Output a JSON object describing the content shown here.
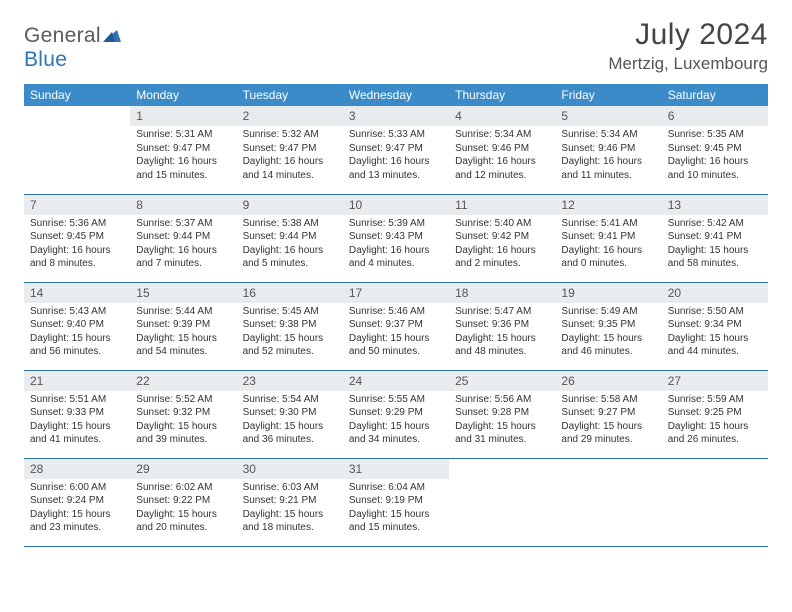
{
  "brand": {
    "name_part1": "General",
    "name_part2": "Blue"
  },
  "title": "July 2024",
  "location": "Mertzig, Luxembourg",
  "colors": {
    "header_bg": "#3b8bc8",
    "header_text": "#ffffff",
    "daynum_bg": "#e9ecef",
    "week_divider": "#2e6ea5",
    "brand_gray": "#5a5a5a",
    "brand_blue": "#2e75b6",
    "body_text": "#333333"
  },
  "typography": {
    "title_fontsize": 30,
    "location_fontsize": 17,
    "dow_fontsize": 12,
    "daynum_fontsize": 12,
    "cell_fontsize": 10
  },
  "days_of_week": [
    "Sunday",
    "Monday",
    "Tuesday",
    "Wednesday",
    "Thursday",
    "Friday",
    "Saturday"
  ],
  "weeks": [
    [
      null,
      {
        "n": "1",
        "sunrise": "Sunrise: 5:31 AM",
        "sunset": "Sunset: 9:47 PM",
        "daylight": "Daylight: 16 hours and 15 minutes."
      },
      {
        "n": "2",
        "sunrise": "Sunrise: 5:32 AM",
        "sunset": "Sunset: 9:47 PM",
        "daylight": "Daylight: 16 hours and 14 minutes."
      },
      {
        "n": "3",
        "sunrise": "Sunrise: 5:33 AM",
        "sunset": "Sunset: 9:47 PM",
        "daylight": "Daylight: 16 hours and 13 minutes."
      },
      {
        "n": "4",
        "sunrise": "Sunrise: 5:34 AM",
        "sunset": "Sunset: 9:46 PM",
        "daylight": "Daylight: 16 hours and 12 minutes."
      },
      {
        "n": "5",
        "sunrise": "Sunrise: 5:34 AM",
        "sunset": "Sunset: 9:46 PM",
        "daylight": "Daylight: 16 hours and 11 minutes."
      },
      {
        "n": "6",
        "sunrise": "Sunrise: 5:35 AM",
        "sunset": "Sunset: 9:45 PM",
        "daylight": "Daylight: 16 hours and 10 minutes."
      }
    ],
    [
      {
        "n": "7",
        "sunrise": "Sunrise: 5:36 AM",
        "sunset": "Sunset: 9:45 PM",
        "daylight": "Daylight: 16 hours and 8 minutes."
      },
      {
        "n": "8",
        "sunrise": "Sunrise: 5:37 AM",
        "sunset": "Sunset: 9:44 PM",
        "daylight": "Daylight: 16 hours and 7 minutes."
      },
      {
        "n": "9",
        "sunrise": "Sunrise: 5:38 AM",
        "sunset": "Sunset: 9:44 PM",
        "daylight": "Daylight: 16 hours and 5 minutes."
      },
      {
        "n": "10",
        "sunrise": "Sunrise: 5:39 AM",
        "sunset": "Sunset: 9:43 PM",
        "daylight": "Daylight: 16 hours and 4 minutes."
      },
      {
        "n": "11",
        "sunrise": "Sunrise: 5:40 AM",
        "sunset": "Sunset: 9:42 PM",
        "daylight": "Daylight: 16 hours and 2 minutes."
      },
      {
        "n": "12",
        "sunrise": "Sunrise: 5:41 AM",
        "sunset": "Sunset: 9:41 PM",
        "daylight": "Daylight: 16 hours and 0 minutes."
      },
      {
        "n": "13",
        "sunrise": "Sunrise: 5:42 AM",
        "sunset": "Sunset: 9:41 PM",
        "daylight": "Daylight: 15 hours and 58 minutes."
      }
    ],
    [
      {
        "n": "14",
        "sunrise": "Sunrise: 5:43 AM",
        "sunset": "Sunset: 9:40 PM",
        "daylight": "Daylight: 15 hours and 56 minutes."
      },
      {
        "n": "15",
        "sunrise": "Sunrise: 5:44 AM",
        "sunset": "Sunset: 9:39 PM",
        "daylight": "Daylight: 15 hours and 54 minutes."
      },
      {
        "n": "16",
        "sunrise": "Sunrise: 5:45 AM",
        "sunset": "Sunset: 9:38 PM",
        "daylight": "Daylight: 15 hours and 52 minutes."
      },
      {
        "n": "17",
        "sunrise": "Sunrise: 5:46 AM",
        "sunset": "Sunset: 9:37 PM",
        "daylight": "Daylight: 15 hours and 50 minutes."
      },
      {
        "n": "18",
        "sunrise": "Sunrise: 5:47 AM",
        "sunset": "Sunset: 9:36 PM",
        "daylight": "Daylight: 15 hours and 48 minutes."
      },
      {
        "n": "19",
        "sunrise": "Sunrise: 5:49 AM",
        "sunset": "Sunset: 9:35 PM",
        "daylight": "Daylight: 15 hours and 46 minutes."
      },
      {
        "n": "20",
        "sunrise": "Sunrise: 5:50 AM",
        "sunset": "Sunset: 9:34 PM",
        "daylight": "Daylight: 15 hours and 44 minutes."
      }
    ],
    [
      {
        "n": "21",
        "sunrise": "Sunrise: 5:51 AM",
        "sunset": "Sunset: 9:33 PM",
        "daylight": "Daylight: 15 hours and 41 minutes."
      },
      {
        "n": "22",
        "sunrise": "Sunrise: 5:52 AM",
        "sunset": "Sunset: 9:32 PM",
        "daylight": "Daylight: 15 hours and 39 minutes."
      },
      {
        "n": "23",
        "sunrise": "Sunrise: 5:54 AM",
        "sunset": "Sunset: 9:30 PM",
        "daylight": "Daylight: 15 hours and 36 minutes."
      },
      {
        "n": "24",
        "sunrise": "Sunrise: 5:55 AM",
        "sunset": "Sunset: 9:29 PM",
        "daylight": "Daylight: 15 hours and 34 minutes."
      },
      {
        "n": "25",
        "sunrise": "Sunrise: 5:56 AM",
        "sunset": "Sunset: 9:28 PM",
        "daylight": "Daylight: 15 hours and 31 minutes."
      },
      {
        "n": "26",
        "sunrise": "Sunrise: 5:58 AM",
        "sunset": "Sunset: 9:27 PM",
        "daylight": "Daylight: 15 hours and 29 minutes."
      },
      {
        "n": "27",
        "sunrise": "Sunrise: 5:59 AM",
        "sunset": "Sunset: 9:25 PM",
        "daylight": "Daylight: 15 hours and 26 minutes."
      }
    ],
    [
      {
        "n": "28",
        "sunrise": "Sunrise: 6:00 AM",
        "sunset": "Sunset: 9:24 PM",
        "daylight": "Daylight: 15 hours and 23 minutes."
      },
      {
        "n": "29",
        "sunrise": "Sunrise: 6:02 AM",
        "sunset": "Sunset: 9:22 PM",
        "daylight": "Daylight: 15 hours and 20 minutes."
      },
      {
        "n": "30",
        "sunrise": "Sunrise: 6:03 AM",
        "sunset": "Sunset: 9:21 PM",
        "daylight": "Daylight: 15 hours and 18 minutes."
      },
      {
        "n": "31",
        "sunrise": "Sunrise: 6:04 AM",
        "sunset": "Sunset: 9:19 PM",
        "daylight": "Daylight: 15 hours and 15 minutes."
      },
      null,
      null,
      null
    ]
  ]
}
